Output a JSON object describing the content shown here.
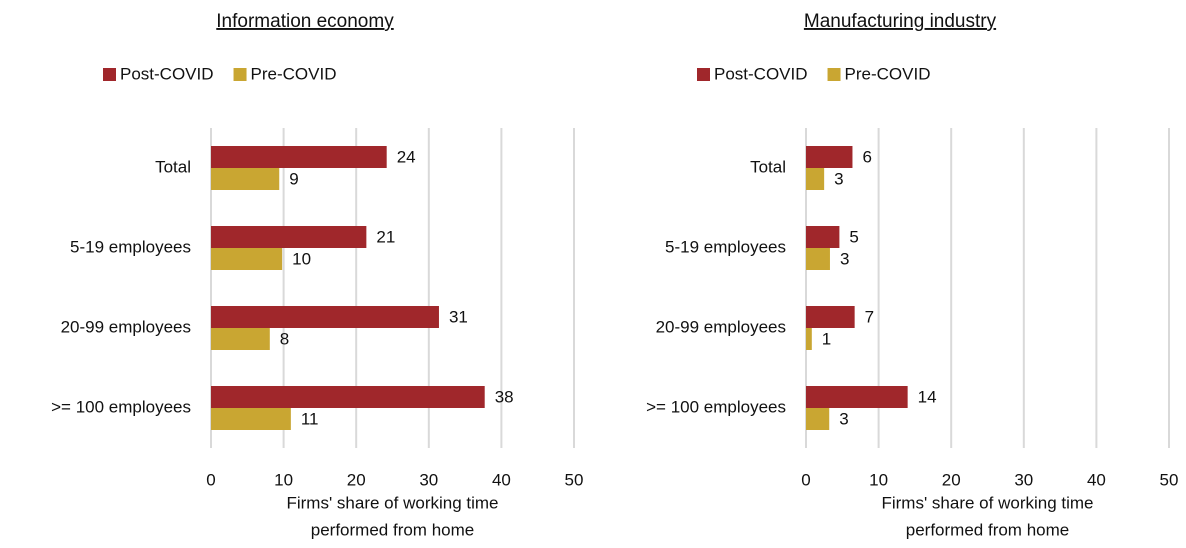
{
  "chart_data": [
    {
      "type": "barh",
      "title": "Information economy",
      "categories": [
        "Total",
        "5-19 employees",
        "20-99 employees",
        ">= 100 employees"
      ],
      "series": [
        {
          "name": "Post-COVID",
          "color": "#a0272b",
          "values": [
            24.2,
            21.4,
            31.4,
            37.7
          ],
          "value_labels": [
            "24",
            "21",
            "31",
            "38"
          ]
        },
        {
          "name": "Pre-COVID",
          "color": "#c9a632",
          "values": [
            9.4,
            9.8,
            8.1,
            11.0
          ],
          "value_labels": [
            "9",
            "10",
            "8",
            "11"
          ]
        }
      ],
      "xlim": [
        0,
        50
      ],
      "xticks": [
        0,
        10,
        20,
        30,
        40,
        50
      ],
      "grid": true,
      "x_label": [
        "Firms' share of working time",
        "performed from home"
      ]
    },
    {
      "type": "barh",
      "title": "Manufacturing industry",
      "categories": [
        "Total",
        "5-19 employees",
        "20-99 employees",
        ">= 100 employees"
      ],
      "series": [
        {
          "name": "Post-COVID",
          "color": "#a0272b",
          "values": [
            6.4,
            4.6,
            6.7,
            14.0
          ],
          "value_labels": [
            "6",
            "5",
            "7",
            "14"
          ]
        },
        {
          "name": "Pre-COVID",
          "color": "#c9a632",
          "values": [
            2.5,
            3.3,
            0.8,
            3.2
          ],
          "value_labels": [
            "3",
            "3",
            "1",
            "3"
          ]
        }
      ],
      "xlim": [
        0,
        50
      ],
      "xticks": [
        0,
        10,
        20,
        30,
        40,
        50
      ],
      "grid": true,
      "x_label": [
        "Firms' share of working time",
        "performed from home"
      ]
    }
  ]
}
